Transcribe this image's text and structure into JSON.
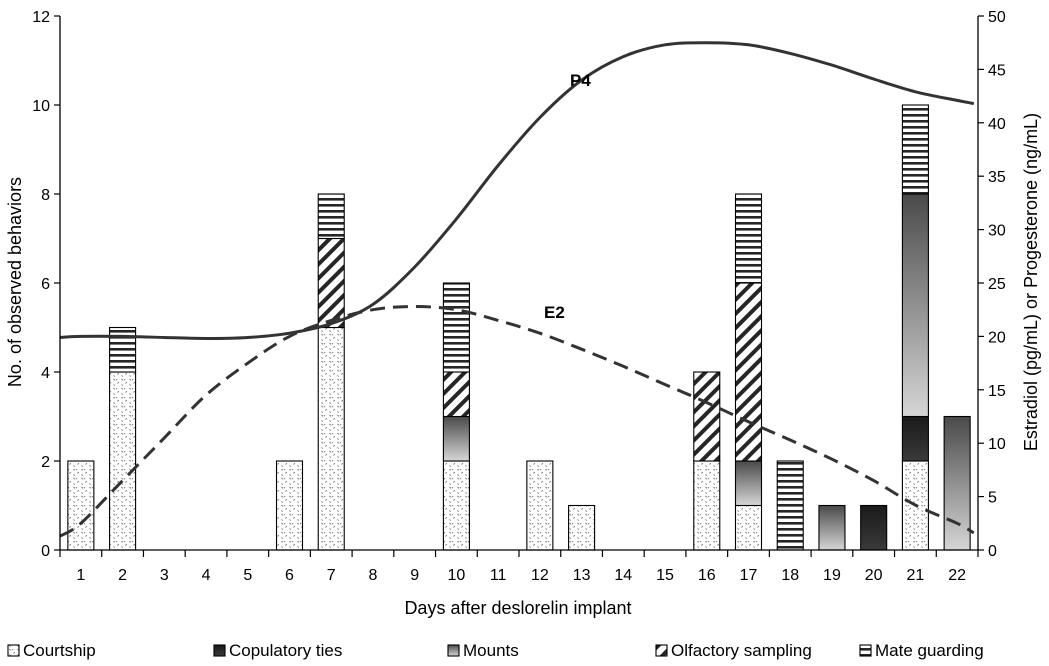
{
  "chart_data": {
    "type": "bar",
    "stacked": true,
    "xlabel": "Days after deslorelin implant",
    "ylabel_left": "No. of observed behaviors",
    "ylabel_right": "Estradiol (pg/mL) or Progesterone (ng/mL)",
    "ylim_left": [
      0,
      12
    ],
    "ylim_right": [
      0,
      50
    ],
    "yticks_left": [
      "0",
      "2",
      "4",
      "6",
      "8",
      "10",
      "12"
    ],
    "yticks_right": [
      "0",
      "5",
      "10",
      "15",
      "20",
      "25",
      "30",
      "35",
      "40",
      "45",
      "50"
    ],
    "categories": [
      "1",
      "2",
      "3",
      "4",
      "5",
      "6",
      "7",
      "8",
      "9",
      "10",
      "11",
      "12",
      "13",
      "14",
      "15",
      "16",
      "17",
      "18",
      "19",
      "20",
      "21",
      "22"
    ],
    "series": [
      {
        "name": "Courtship",
        "key": "courtship",
        "values": [
          2,
          4,
          0,
          0,
          0,
          2,
          5,
          0,
          0,
          2,
          0,
          2,
          1,
          0,
          0,
          2,
          1,
          0,
          0,
          0,
          2,
          0
        ]
      },
      {
        "name": "Copulatory ties",
        "key": "copulatory",
        "values": [
          0,
          0,
          0,
          0,
          0,
          0,
          0,
          0,
          0,
          0,
          0,
          0,
          0,
          0,
          0,
          0,
          0,
          0,
          0,
          1,
          1,
          0
        ]
      },
      {
        "name": "Mounts",
        "key": "mounts",
        "values": [
          0,
          0,
          0,
          0,
          0,
          0,
          0,
          0,
          0,
          1,
          0,
          0,
          0,
          0,
          0,
          0,
          1,
          0,
          1,
          0,
          5,
          3
        ]
      },
      {
        "name": "Olfactory sampling",
        "key": "olfactory",
        "values": [
          0,
          0,
          0,
          0,
          0,
          0,
          2,
          0,
          0,
          1,
          0,
          0,
          0,
          0,
          0,
          2,
          4,
          0,
          0,
          0,
          0,
          0
        ]
      },
      {
        "name": "Mate guarding",
        "key": "guarding",
        "values": [
          0,
          1,
          0,
          0,
          0,
          0,
          1,
          0,
          0,
          2,
          0,
          0,
          0,
          0,
          0,
          0,
          2,
          2,
          0,
          0,
          2,
          0
        ]
      }
    ],
    "lines": [
      {
        "name": "P4",
        "style": "solid",
        "axis": "right",
        "x": [
          0.5,
          1,
          2,
          3,
          4,
          5,
          6,
          7,
          8,
          9,
          10,
          11,
          12,
          13,
          14,
          15,
          16,
          17,
          18,
          19,
          20,
          21,
          22,
          22.4
        ],
        "y": [
          19.9,
          20,
          20,
          19.9,
          19.8,
          19.9,
          20.3,
          21.2,
          23,
          26.5,
          31,
          36,
          40.5,
          44,
          46.2,
          47.3,
          47.5,
          47.3,
          46.5,
          45.4,
          44.1,
          42.9,
          42.1,
          41.8
        ]
      },
      {
        "name": "E2",
        "style": "dashed",
        "axis": "right",
        "x": [
          0.5,
          1,
          2,
          3,
          4,
          5,
          6,
          7,
          8,
          9,
          10,
          11,
          12,
          13,
          14,
          15,
          16,
          17,
          18,
          19,
          20,
          21,
          22,
          22.4
        ],
        "y": [
          1.3,
          2.5,
          6.5,
          10.5,
          14.5,
          17.5,
          20,
          21.5,
          22.5,
          22.8,
          22.5,
          21.5,
          20.3,
          18.8,
          17.2,
          15.5,
          13.8,
          12,
          10.3,
          8.5,
          6.5,
          4.2,
          2.5,
          1.6
        ]
      }
    ],
    "curve_labels": [
      "P4",
      "E2"
    ],
    "legend_position": "bottom",
    "grid": false
  }
}
